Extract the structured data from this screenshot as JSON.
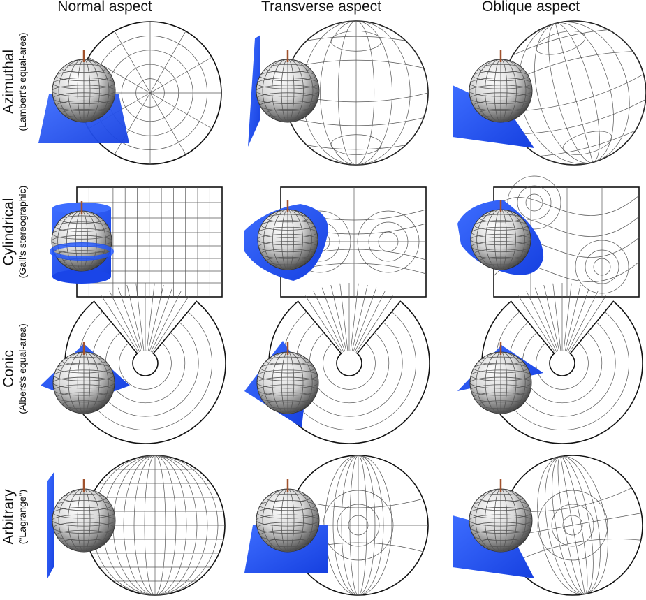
{
  "column_headers": [
    "Normal aspect",
    "Transverse aspect",
    "Oblique aspect"
  ],
  "rows": [
    {
      "name": "Azimuthal",
      "subtitle": "(Lambert's equal-area)"
    },
    {
      "name": "Cylindrical",
      "subtitle": "(Gall's stereographic)"
    },
    {
      "name": "Conic",
      "subtitle": "(Albers's equal-area)"
    },
    {
      "name": "Arbitrary",
      "subtitle": "(\"Lagrange\")"
    }
  ],
  "colors": {
    "surface": "#1f55ff",
    "grid": "#555555",
    "outline": "#111111",
    "axis": "#a0522d",
    "globe_light": "#ffffff",
    "globe_dark": "#2a2a2a"
  }
}
